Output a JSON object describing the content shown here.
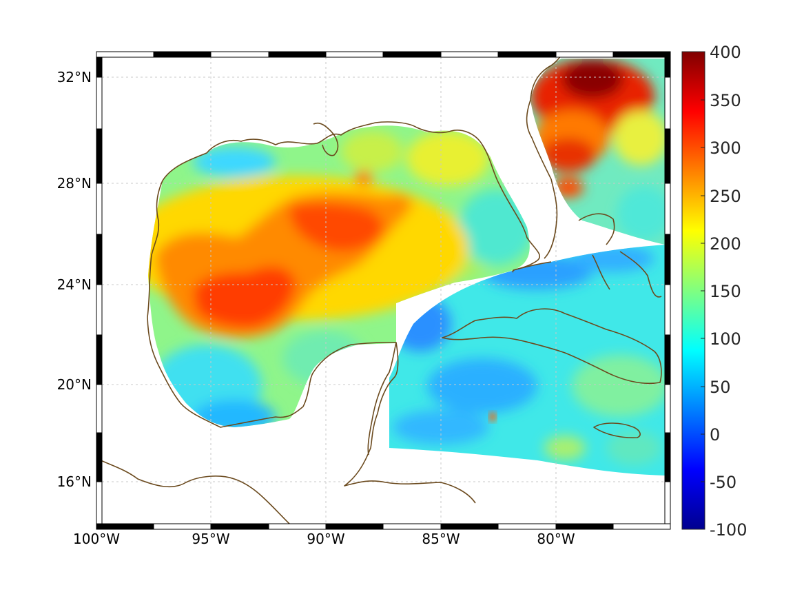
{
  "map": {
    "lon_labels": [
      "100°W",
      "95°W",
      "90°W",
      "85°W",
      "80°W"
    ],
    "lat_labels": [
      "32°N",
      "28°N",
      "24°N",
      "20°N",
      "16°N"
    ],
    "lon_range_deg_w": [
      100,
      75
    ],
    "lat_range_deg_n": [
      14.2,
      33
    ],
    "grid": true
  },
  "colorbar": {
    "tick_labels": [
      "400",
      "350",
      "300",
      "250",
      "200",
      "150",
      "100",
      "50",
      "0",
      "-50",
      "-100"
    ],
    "range": [
      -100,
      400
    ],
    "colormap": "jet"
  },
  "colors": {
    "coastline": "#6b4a1e",
    "grid": "#c8c8c8",
    "frame_dark": "#000000",
    "frame_light": "#ffffff",
    "jet_stops": [
      "#00008f",
      "#0000ff",
      "#0080ff",
      "#00ffff",
      "#80ff80",
      "#ffff00",
      "#ff8000",
      "#ff0000",
      "#800000"
    ]
  }
}
